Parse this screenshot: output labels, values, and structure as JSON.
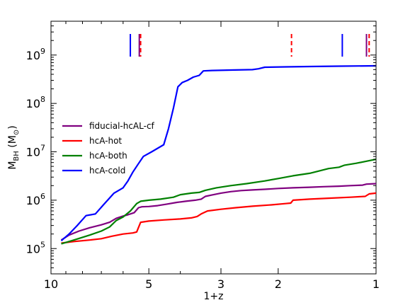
{
  "chart_data": {
    "type": "line",
    "xlabel": "1+z",
    "ylabel": "M_BH (M_⊙)",
    "xscale": "log",
    "yscale": "log",
    "xlim": [
      10,
      1
    ],
    "ylim": [
      30000,
      5000000000
    ],
    "x_ticks": [
      10,
      5,
      3,
      2,
      1
    ],
    "x_tick_labels": [
      "10",
      "5",
      "3",
      "2",
      "1"
    ],
    "y_ticks": [
      100000,
      1000000,
      10000000,
      100000000,
      1000000000
    ],
    "legend": {
      "placement": "center-left"
    },
    "series": [
      {
        "name": "fiducial-hcAL-cf",
        "color": "#800080",
        "points": [
          [
            9.3,
            150000
          ],
          [
            8.8,
            190000
          ],
          [
            8.2,
            230000
          ],
          [
            7.6,
            270000
          ],
          [
            7.0,
            310000
          ],
          [
            6.6,
            350000
          ],
          [
            6.3,
            420000
          ],
          [
            6.0,
            470000
          ],
          [
            5.8,
            500000
          ],
          [
            5.55,
            550000
          ],
          [
            5.38,
            700000
          ],
          [
            5.25,
            730000
          ],
          [
            5.0,
            740000
          ],
          [
            4.7,
            770000
          ],
          [
            4.4,
            830000
          ],
          [
            4.1,
            900000
          ],
          [
            3.85,
            950000
          ],
          [
            3.6,
            1000000
          ],
          [
            3.45,
            1050000
          ],
          [
            3.35,
            1200000
          ],
          [
            3.2,
            1280000
          ],
          [
            3.0,
            1400000
          ],
          [
            2.8,
            1500000
          ],
          [
            2.6,
            1580000
          ],
          [
            2.4,
            1630000
          ],
          [
            2.2,
            1680000
          ],
          [
            2.0,
            1750000
          ],
          [
            1.8,
            1800000
          ],
          [
            1.6,
            1850000
          ],
          [
            1.45,
            1900000
          ],
          [
            1.3,
            1950000
          ],
          [
            1.2,
            2000000
          ],
          [
            1.1,
            2050000
          ],
          [
            1.07,
            2150000
          ],
          [
            1.0,
            2200000
          ]
        ]
      },
      {
        "name": "hcA-hot",
        "color": "#ff0000",
        "points": [
          [
            9.3,
            130000
          ],
          [
            8.5,
            140000
          ],
          [
            7.6,
            150000
          ],
          [
            7.0,
            160000
          ],
          [
            6.5,
            180000
          ],
          [
            6.0,
            200000
          ],
          [
            5.6,
            210000
          ],
          [
            5.45,
            220000
          ],
          [
            5.3,
            350000
          ],
          [
            5.0,
            370000
          ],
          [
            4.5,
            390000
          ],
          [
            4.0,
            410000
          ],
          [
            3.7,
            430000
          ],
          [
            3.55,
            460000
          ],
          [
            3.45,
            520000
          ],
          [
            3.3,
            600000
          ],
          [
            3.0,
            650000
          ],
          [
            2.7,
            700000
          ],
          [
            2.4,
            750000
          ],
          [
            2.1,
            800000
          ],
          [
            1.9,
            850000
          ],
          [
            1.83,
            870000
          ],
          [
            1.8,
            1000000
          ],
          [
            1.6,
            1050000
          ],
          [
            1.4,
            1100000
          ],
          [
            1.2,
            1150000
          ],
          [
            1.08,
            1200000
          ],
          [
            1.05,
            1350000
          ],
          [
            1.0,
            1400000
          ]
        ]
      },
      {
        "name": "hcA-both",
        "color": "#008000",
        "points": [
          [
            9.3,
            125000
          ],
          [
            8.5,
            150000
          ],
          [
            7.6,
            190000
          ],
          [
            7.0,
            230000
          ],
          [
            6.6,
            280000
          ],
          [
            6.3,
            380000
          ],
          [
            6.0,
            450000
          ],
          [
            5.7,
            600000
          ],
          [
            5.45,
            850000
          ],
          [
            5.3,
            950000
          ],
          [
            5.0,
            1000000
          ],
          [
            4.6,
            1050000
          ],
          [
            4.2,
            1150000
          ],
          [
            4.0,
            1300000
          ],
          [
            3.7,
            1400000
          ],
          [
            3.5,
            1450000
          ],
          [
            3.35,
            1600000
          ],
          [
            3.1,
            1800000
          ],
          [
            2.8,
            2000000
          ],
          [
            2.5,
            2200000
          ],
          [
            2.2,
            2500000
          ],
          [
            2.0,
            2800000
          ],
          [
            1.8,
            3200000
          ],
          [
            1.6,
            3600000
          ],
          [
            1.5,
            4000000
          ],
          [
            1.4,
            4500000
          ],
          [
            1.3,
            4800000
          ],
          [
            1.25,
            5300000
          ],
          [
            1.15,
            5800000
          ],
          [
            1.0,
            7000000
          ]
        ]
      },
      {
        "name": "hcA-cold",
        "color": "#0000ff",
        "points": [
          [
            9.3,
            145000
          ],
          [
            8.8,
            200000
          ],
          [
            8.3,
            300000
          ],
          [
            7.8,
            480000
          ],
          [
            7.3,
            520000
          ],
          [
            6.9,
            800000
          ],
          [
            6.4,
            1400000
          ],
          [
            6.0,
            1800000
          ],
          [
            5.8,
            2500000
          ],
          [
            5.6,
            3800000
          ],
          [
            5.4,
            5500000
          ],
          [
            5.2,
            8000000
          ],
          [
            4.9,
            10000000
          ],
          [
            4.5,
            14000000
          ],
          [
            4.35,
            30000000
          ],
          [
            4.2,
            80000000
          ],
          [
            4.07,
            220000000
          ],
          [
            3.95,
            270000000
          ],
          [
            3.8,
            300000000
          ],
          [
            3.65,
            350000000
          ],
          [
            3.5,
            380000000
          ],
          [
            3.4,
            470000000
          ],
          [
            3.2,
            480000000
          ],
          [
            2.8,
            490000000
          ],
          [
            2.4,
            500000000
          ],
          [
            2.3,
            520000000
          ],
          [
            2.2,
            560000000
          ],
          [
            1.9,
            570000000
          ],
          [
            1.6,
            580000000
          ],
          [
            1.3,
            590000000
          ],
          [
            1.0,
            600000000
          ]
        ]
      }
    ],
    "vertical_markers": [
      {
        "x": 5.7,
        "color": "#0000ff",
        "style": "solid"
      },
      {
        "x": 5.35,
        "color": "#800080",
        "style": "solid"
      },
      {
        "x": 5.3,
        "color": "#ff0000",
        "style": "dashed"
      },
      {
        "x": 1.82,
        "color": "#ff0000",
        "style": "dashed"
      },
      {
        "x": 1.27,
        "color": "#0000ff",
        "style": "solid"
      },
      {
        "x": 1.07,
        "color": "#800080",
        "style": "solid"
      },
      {
        "x": 1.05,
        "color": "#ff0000",
        "style": "dashed"
      }
    ]
  }
}
